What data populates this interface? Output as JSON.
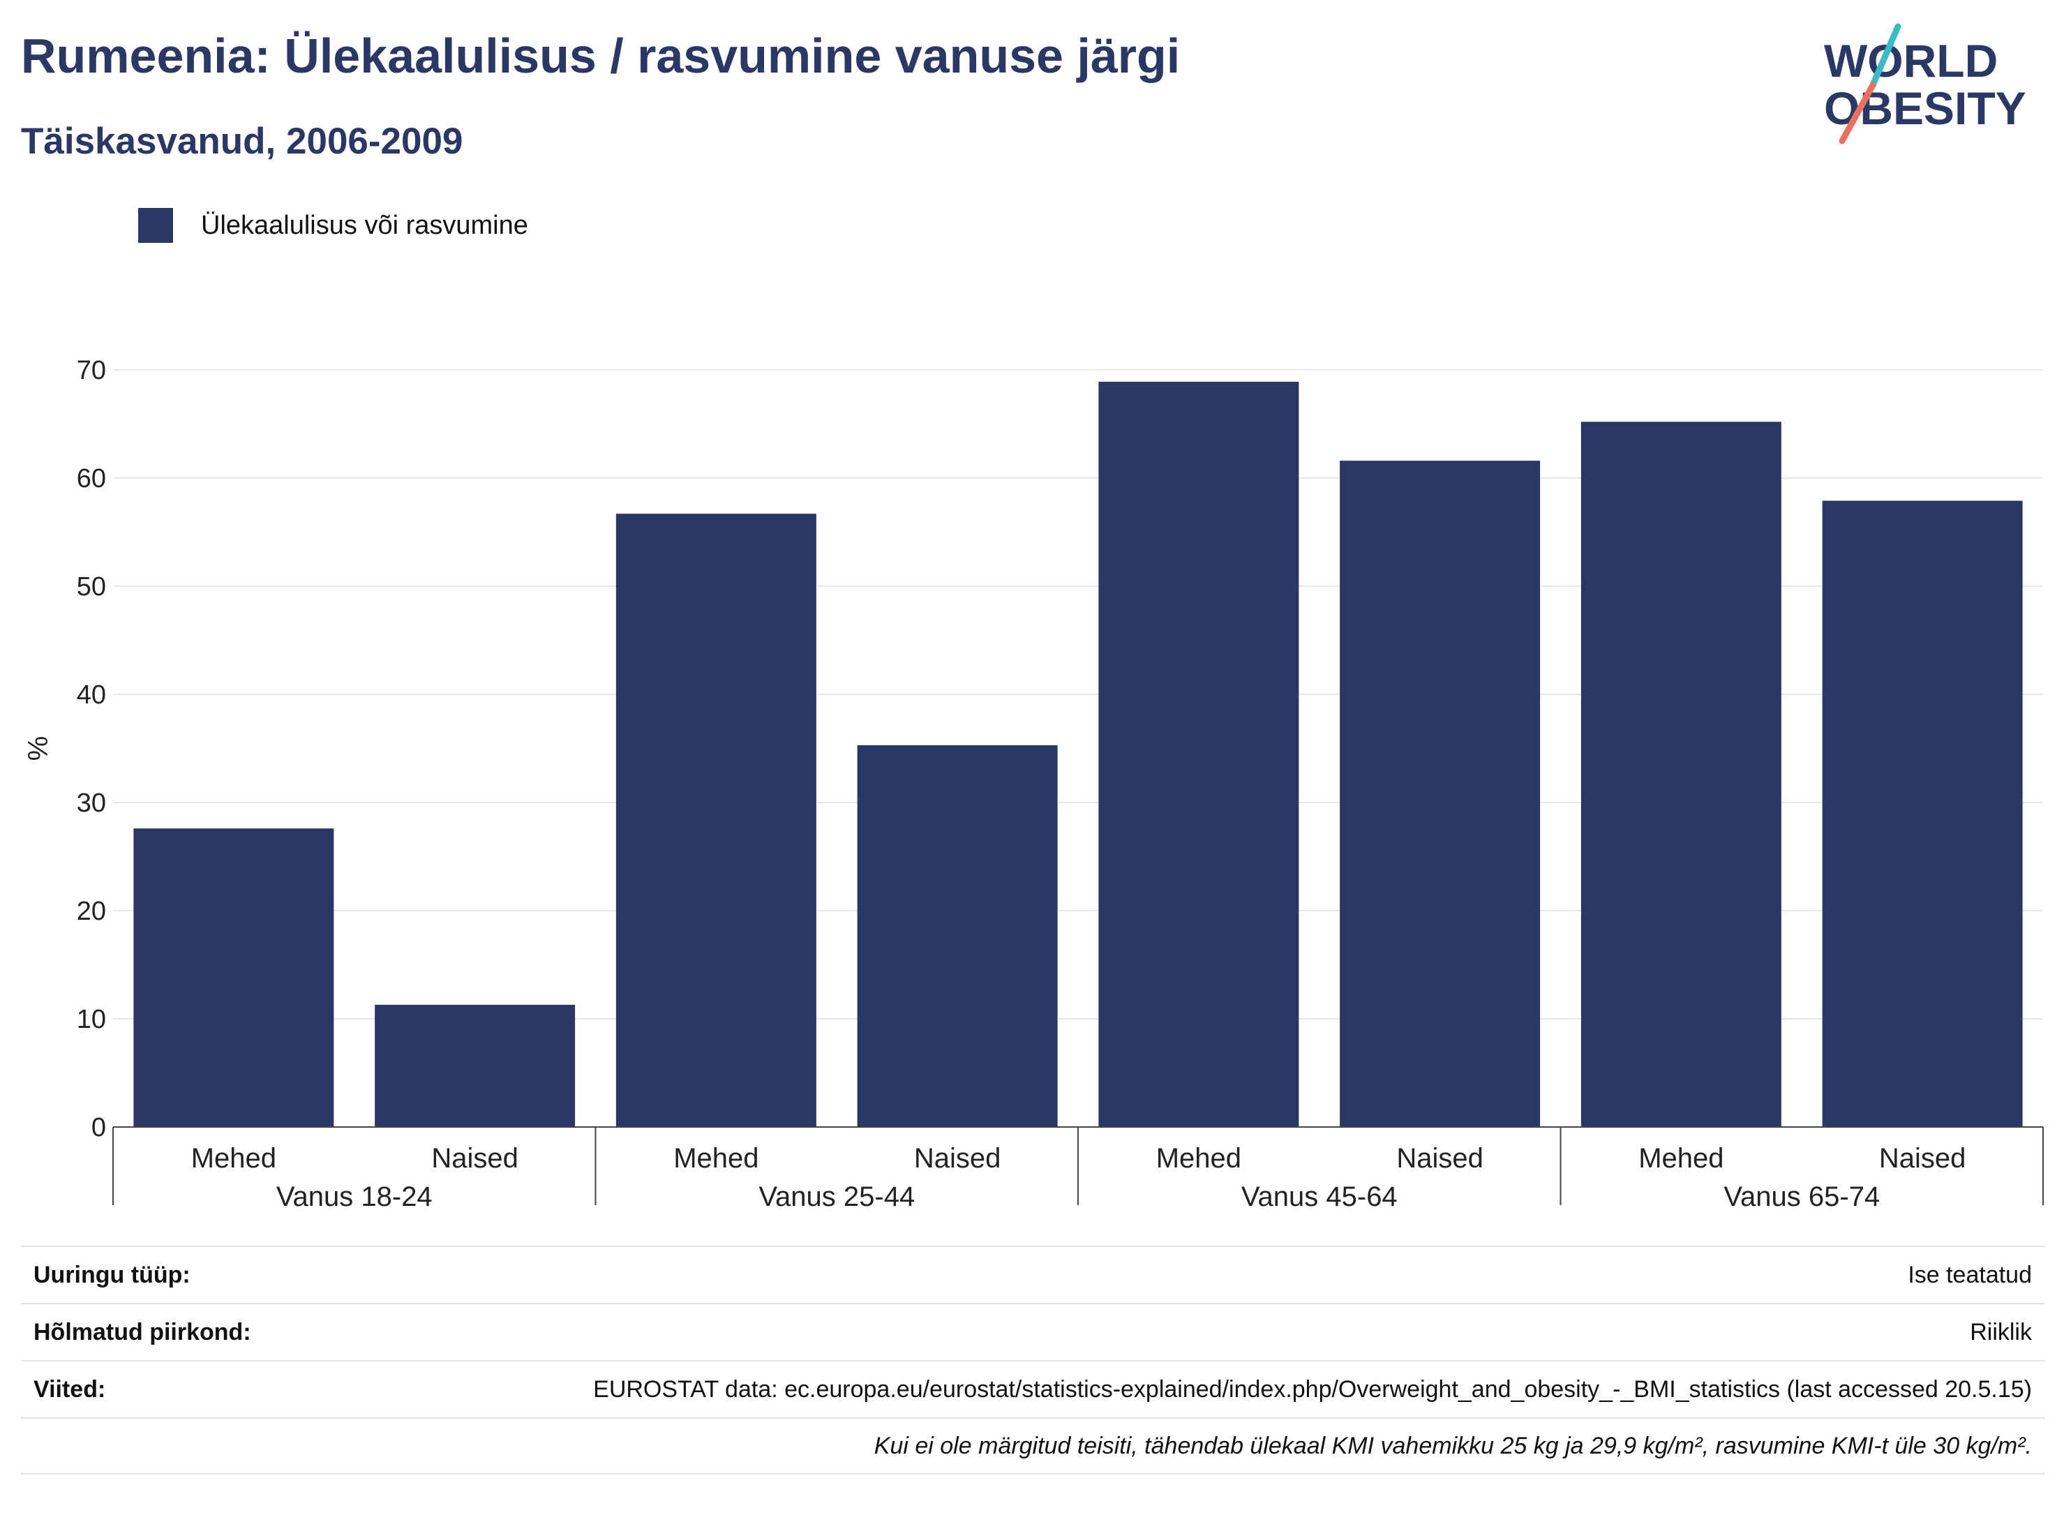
{
  "title": "Rumeenia: Ülekaalulisus / rasvumine vanuse järgi",
  "subtitle": "Täiskasvanud, 2006-2009",
  "logo": {
    "line1": "WORLD",
    "line2": "OBESITY"
  },
  "colors": {
    "bar": "#2a3663",
    "title": "#2b3764",
    "accent_teal": "#3bbcc4",
    "accent_coral": "#e8705e"
  },
  "chart_data": {
    "type": "bar",
    "legend": [
      "Ülekaalulisus või rasvumine"
    ],
    "legend_position": "top-left",
    "ylabel": "%",
    "ylim": [
      0,
      70
    ],
    "yticks": [
      0,
      10,
      20,
      30,
      40,
      50,
      60,
      70
    ],
    "grid": true,
    "groups": [
      "Vanus 18-24",
      "Vanus 25-44",
      "Vanus 45-64",
      "Vanus 65-74"
    ],
    "categories": [
      "Mehed",
      "Naised",
      "Mehed",
      "Naised",
      "Mehed",
      "Naised",
      "Mehed",
      "Naised"
    ],
    "series": [
      {
        "name": "Ülekaalulisus või rasvumine",
        "values": [
          27.6,
          11.3,
          56.7,
          35.3,
          68.9,
          61.6,
          65.2,
          57.9
        ]
      }
    ]
  },
  "footer": {
    "rows": [
      {
        "key": "Uuringu tüüp:",
        "value": "Ise teatatud"
      },
      {
        "key": "Hõlmatud piirkond:",
        "value": "Riiklik"
      },
      {
        "key": "Viited:",
        "value": "EUROSTAT data: ec.europa.eu/eurostat/statistics-explained/index.php/Overweight_and_obesity_-_BMI_statistics (last accessed 20.5.15)"
      }
    ],
    "note": "Kui ei ole märgitud teisiti, tähendab ülekaal KMI vahemikku 25 kg ja 29,9 kg/m², rasvumine KMI-t üle 30 kg/m²."
  }
}
